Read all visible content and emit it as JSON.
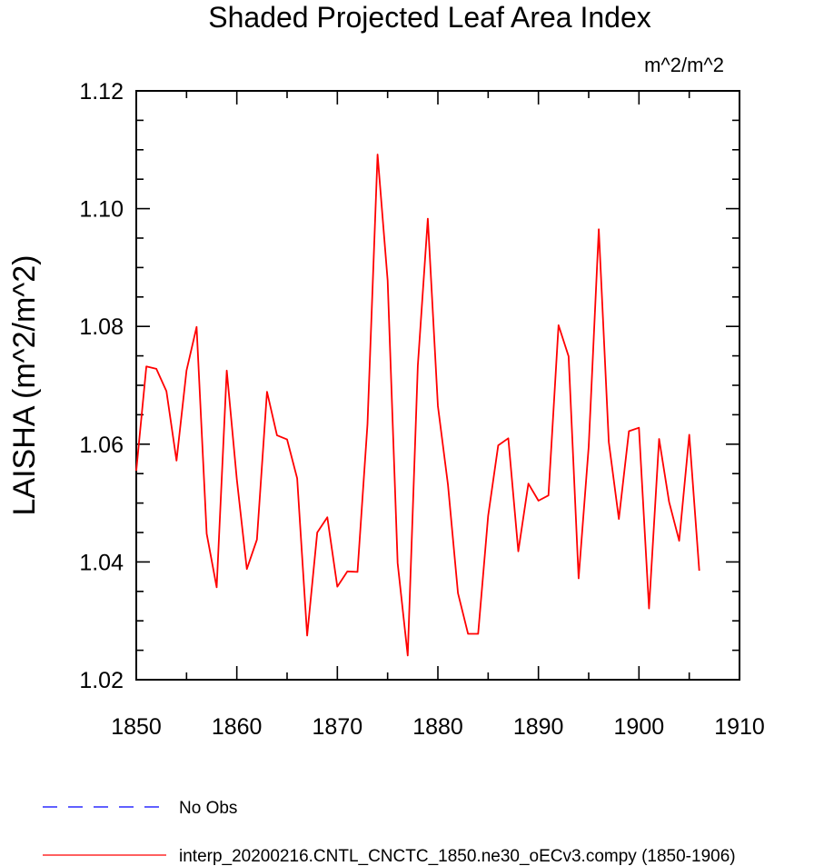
{
  "chart_data": {
    "type": "line",
    "title": "Shaded Projected Leaf Area Index",
    "units": "m^2/m^2",
    "ylabel": "LAISHA  (m^2/m^2)",
    "xlabel": "",
    "xlim": [
      1850,
      1910
    ],
    "ylim": [
      1.02,
      1.12
    ],
    "x_ticks": [
      1850,
      1860,
      1870,
      1880,
      1890,
      1900,
      1910
    ],
    "y_ticks": [
      1.02,
      1.04,
      1.06,
      1.08,
      1.1,
      1.12
    ],
    "x_tick_labels": [
      "1850",
      "1860",
      "1870",
      "1880",
      "1890",
      "1900",
      "1910"
    ],
    "y_tick_labels": [
      "1.02",
      "1.04",
      "1.06",
      "1.08",
      "1.10",
      "1.12"
    ],
    "grid": false,
    "legend_position": "bottom",
    "series": [
      {
        "name": "interp_20200216.CNTL_CNCTC_1850.ne30_oECv3.compy (1850-1906)",
        "color": "#ff0000",
        "style": "solid",
        "x": [
          1850,
          1851,
          1852,
          1853,
          1854,
          1855,
          1856,
          1857,
          1858,
          1859,
          1860,
          1861,
          1862,
          1863,
          1864,
          1865,
          1866,
          1867,
          1868,
          1869,
          1870,
          1871,
          1872,
          1873,
          1874,
          1875,
          1876,
          1877,
          1878,
          1879,
          1880,
          1881,
          1882,
          1883,
          1884,
          1885,
          1886,
          1887,
          1888,
          1889,
          1890,
          1891,
          1892,
          1893,
          1894,
          1895,
          1896,
          1897,
          1898,
          1899,
          1900,
          1901,
          1902,
          1903,
          1904,
          1905,
          1906
        ],
        "y": [
          1.0555,
          1.0732,
          1.0728,
          1.069,
          1.0572,
          1.0725,
          1.0799,
          1.0448,
          1.0357,
          1.0725,
          1.054,
          1.0388,
          1.0438,
          1.0689,
          1.0615,
          1.0608,
          1.0542,
          1.0275,
          1.045,
          1.0476,
          1.0358,
          1.0384,
          1.0383,
          1.0634,
          1.1092,
          1.0878,
          1.0398,
          1.0241,
          1.0733,
          1.0983,
          1.0665,
          1.0531,
          1.0347,
          1.0278,
          1.0278,
          1.0478,
          1.0598,
          1.061,
          1.0418,
          1.0533,
          1.0504,
          1.0513,
          1.0802,
          1.0749,
          1.0372,
          1.0596,
          1.0965,
          1.0604,
          1.0473,
          1.0622,
          1.0628,
          1.0321,
          1.0609,
          1.0502,
          1.0436,
          1.0616,
          1.0385
        ]
      }
    ],
    "legend": [
      {
        "label": "No Obs",
        "color": "#0000ff",
        "style": "dashed"
      },
      {
        "label": "interp_20200216.CNTL_CNCTC_1850.ne30_oECv3.compy (1850-1906)",
        "color": "#ff0000",
        "style": "solid"
      }
    ]
  }
}
